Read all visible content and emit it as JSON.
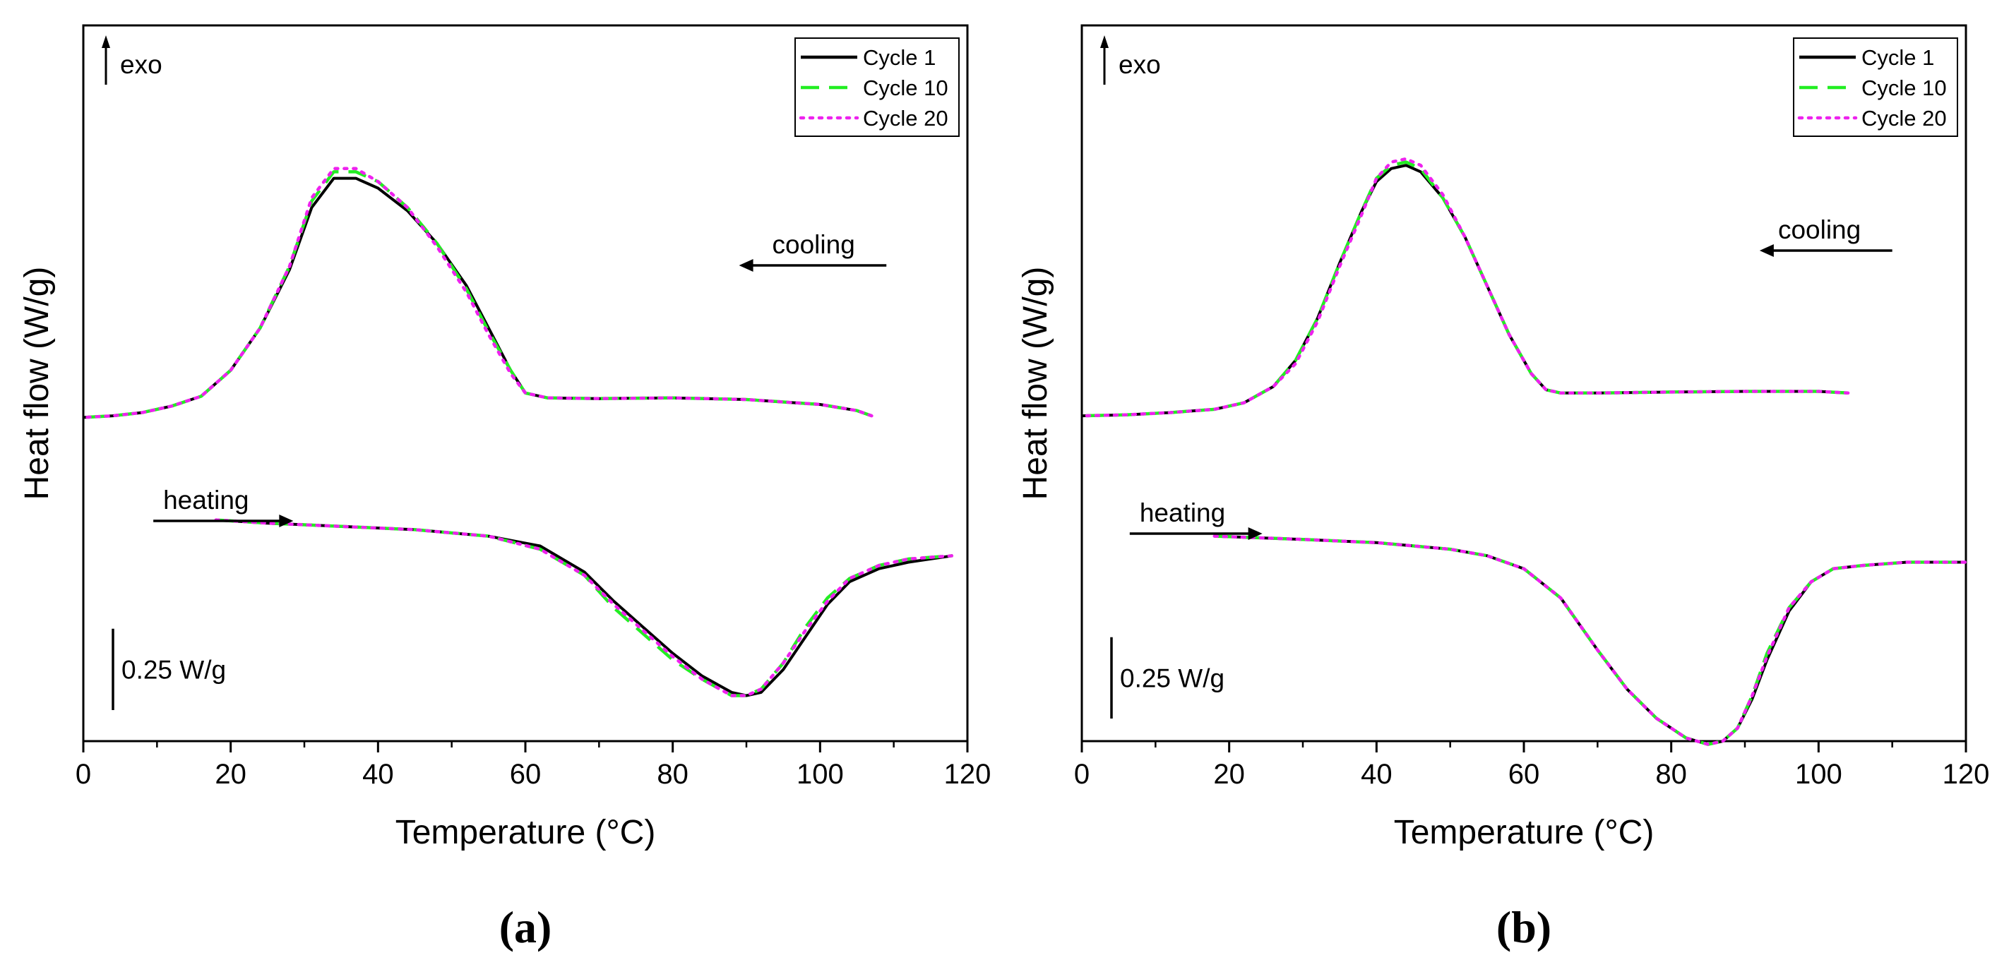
{
  "chart_data": [
    {
      "type": "line",
      "panel_label": "(a)",
      "xlabel": "Temperature (°C)",
      "ylabel": "Heat flow (W/g)",
      "xlim": [
        0,
        120
      ],
      "ylim": [
        -1.0,
        1.2
      ],
      "x_ticks": [
        "0",
        "20",
        "40",
        "60",
        "80",
        "100",
        "120"
      ],
      "y_ticks_labeled": false,
      "legend_position": "top-right",
      "annotations": {
        "exo": "exo",
        "cooling": "cooling",
        "heating": "heating",
        "scale_bar": "0.25 W/g",
        "scale_bar_value": 0.25
      },
      "series": [
        {
          "name": "Cycle 1",
          "color": "#000000",
          "dash": "solid",
          "cooling": {
            "x": [
              107,
              105,
              100,
              90,
              80,
              70,
              63,
              60,
              58,
              55,
              52,
              48,
              44,
              40,
              37,
              34,
              31,
              28,
              24,
              20,
              16,
              12,
              8,
              4,
              0
            ],
            "y": [
              0.0,
              0.016,
              0.035,
              0.05,
              0.055,
              0.053,
              0.055,
              0.07,
              0.14,
              0.27,
              0.4,
              0.53,
              0.63,
              0.7,
              0.73,
              0.73,
              0.64,
              0.45,
              0.27,
              0.14,
              0.06,
              0.03,
              0.01,
              0.0,
              -0.005
            ]
          },
          "heating": {
            "x": [
              18,
              25,
              35,
              45,
              55,
              62,
              68,
              72,
              76,
              80,
              84,
              88,
              90,
              92,
              95,
              98,
              101,
              104,
              108,
              112,
              118
            ],
            "y": [
              -0.32,
              -0.33,
              -0.34,
              -0.35,
              -0.37,
              -0.4,
              -0.48,
              -0.57,
              -0.65,
              -0.73,
              -0.8,
              -0.85,
              -0.86,
              -0.85,
              -0.78,
              -0.68,
              -0.58,
              -0.51,
              -0.47,
              -0.45,
              -0.43
            ]
          }
        },
        {
          "name": "Cycle 10",
          "color": "#22ee22",
          "dash": "dashed",
          "cooling": {
            "x": [
              107,
              105,
              100,
              90,
              80,
              70,
              63,
              60,
              58,
              55,
              52,
              48,
              44,
              40,
              37,
              34,
              31,
              28,
              24,
              20,
              16,
              12,
              8,
              4,
              0
            ],
            "y": [
              0.0,
              0.016,
              0.035,
              0.05,
              0.055,
              0.053,
              0.055,
              0.07,
              0.14,
              0.26,
              0.39,
              0.53,
              0.64,
              0.72,
              0.75,
              0.75,
              0.66,
              0.46,
              0.27,
              0.14,
              0.06,
              0.03,
              0.01,
              0.0,
              -0.005
            ]
          },
          "heating": {
            "x": [
              18,
              25,
              35,
              45,
              55,
              62,
              68,
              72,
              76,
              80,
              84,
              88,
              90,
              92,
              95,
              98,
              101,
              104,
              108,
              112,
              118
            ],
            "y": [
              -0.32,
              -0.33,
              -0.34,
              -0.35,
              -0.37,
              -0.41,
              -0.49,
              -0.59,
              -0.67,
              -0.75,
              -0.81,
              -0.86,
              -0.86,
              -0.84,
              -0.76,
              -0.65,
              -0.56,
              -0.5,
              -0.46,
              -0.44,
              -0.43
            ]
          }
        },
        {
          "name": "Cycle 20",
          "color": "#ee22ee",
          "dash": "dotted",
          "cooling": {
            "x": [
              107,
              105,
              100,
              90,
              80,
              70,
              63,
              60,
              58,
              55,
              52,
              48,
              44,
              40,
              37,
              34,
              31,
              28,
              24,
              20,
              16,
              12,
              8,
              4,
              0
            ],
            "y": [
              0.0,
              0.016,
              0.035,
              0.05,
              0.055,
              0.053,
              0.055,
              0.07,
              0.13,
              0.25,
              0.38,
              0.52,
              0.64,
              0.72,
              0.76,
              0.76,
              0.67,
              0.46,
              0.27,
              0.14,
              0.06,
              0.03,
              0.01,
              0.0,
              -0.005
            ]
          },
          "heating": {
            "x": [
              18,
              25,
              35,
              45,
              55,
              62,
              68,
              72,
              76,
              80,
              84,
              88,
              90,
              92,
              95,
              98,
              101,
              104,
              108,
              112,
              118
            ],
            "y": [
              -0.32,
              -0.33,
              -0.34,
              -0.35,
              -0.37,
              -0.41,
              -0.49,
              -0.58,
              -0.66,
              -0.74,
              -0.81,
              -0.86,
              -0.86,
              -0.84,
              -0.76,
              -0.66,
              -0.57,
              -0.5,
              -0.46,
              -0.44,
              -0.43
            ]
          }
        }
      ]
    },
    {
      "type": "line",
      "panel_label": "(b)",
      "xlabel": "Temperature (°C)",
      "ylabel": "Heat flow (W/g)",
      "xlim": [
        0,
        120
      ],
      "ylim": [
        -1.0,
        1.2
      ],
      "x_ticks": [
        "0",
        "20",
        "40",
        "60",
        "80",
        "100",
        "120"
      ],
      "y_ticks_labeled": false,
      "legend_position": "top-right",
      "annotations": {
        "exo": "exo",
        "cooling": "cooling",
        "heating": "heating",
        "scale_bar": "0.25 W/g",
        "scale_bar_value": 0.25
      },
      "series": [
        {
          "name": "Cycle 1",
          "color": "#000000",
          "dash": "solid",
          "cooling": {
            "x": [
              104,
              100,
              90,
              80,
              70,
              65,
              63,
              61,
              58,
              55,
              52,
              49,
              46,
              44,
              42,
              40,
              38,
              35,
              32,
              29,
              26,
              22,
              18,
              12,
              6,
              0
            ],
            "y": [
              0.07,
              0.075,
              0.075,
              0.073,
              0.07,
              0.07,
              0.08,
              0.13,
              0.25,
              0.4,
              0.55,
              0.67,
              0.75,
              0.77,
              0.76,
              0.72,
              0.63,
              0.47,
              0.3,
              0.17,
              0.09,
              0.04,
              0.02,
              0.01,
              0.003,
              0.0
            ]
          },
          "heating": {
            "x": [
              18,
              30,
              40,
              50,
              55,
              60,
              65,
              70,
              74,
              78,
              82,
              85,
              87,
              89,
              91,
              93,
              96,
              99,
              102,
              106,
              112,
              120
            ],
            "y": [
              -0.37,
              -0.38,
              -0.39,
              -0.41,
              -0.43,
              -0.47,
              -0.56,
              -0.72,
              -0.84,
              -0.93,
              -0.99,
              -1.01,
              -1.0,
              -0.96,
              -0.87,
              -0.75,
              -0.6,
              -0.51,
              -0.47,
              -0.46,
              -0.45,
              -0.45
            ]
          }
        },
        {
          "name": "Cycle 10",
          "color": "#22ee22",
          "dash": "dashed",
          "cooling": {
            "x": [
              104,
              100,
              90,
              80,
              70,
              65,
              63,
              61,
              58,
              55,
              52,
              49,
              46,
              44,
              42,
              40,
              38,
              35,
              32,
              29,
              26,
              22,
              18,
              12,
              6,
              0
            ],
            "y": [
              0.07,
              0.075,
              0.075,
              0.073,
              0.07,
              0.07,
              0.08,
              0.13,
              0.25,
              0.4,
              0.55,
              0.67,
              0.76,
              0.78,
              0.77,
              0.73,
              0.63,
              0.47,
              0.3,
              0.17,
              0.09,
              0.04,
              0.02,
              0.01,
              0.003,
              0.0
            ]
          },
          "heating": {
            "x": [
              18,
              30,
              40,
              50,
              55,
              60,
              65,
              70,
              74,
              78,
              82,
              85,
              87,
              89,
              91,
              93,
              96,
              99,
              102,
              106,
              112,
              120
            ],
            "y": [
              -0.37,
              -0.38,
              -0.39,
              -0.41,
              -0.43,
              -0.47,
              -0.56,
              -0.72,
              -0.84,
              -0.93,
              -0.99,
              -1.01,
              -1.0,
              -0.96,
              -0.86,
              -0.73,
              -0.59,
              -0.51,
              -0.47,
              -0.46,
              -0.45,
              -0.45
            ]
          }
        },
        {
          "name": "Cycle 20",
          "color": "#ee22ee",
          "dash": "dotted",
          "cooling": {
            "x": [
              104,
              100,
              90,
              80,
              70,
              65,
              63,
              61,
              58,
              55,
              52,
              49,
              46,
              44,
              42,
              40,
              38,
              35,
              32,
              29,
              26,
              22,
              18,
              12,
              6,
              0
            ],
            "y": [
              0.07,
              0.075,
              0.075,
              0.073,
              0.07,
              0.07,
              0.08,
              0.13,
              0.25,
              0.4,
              0.55,
              0.68,
              0.77,
              0.79,
              0.78,
              0.73,
              0.62,
              0.46,
              0.29,
              0.16,
              0.09,
              0.04,
              0.02,
              0.01,
              0.003,
              0.0
            ]
          },
          "heating": {
            "x": [
              18,
              30,
              40,
              50,
              55,
              60,
              65,
              70,
              74,
              78,
              82,
              85,
              87,
              89,
              91,
              93,
              96,
              99,
              102,
              106,
              112,
              120
            ],
            "y": [
              -0.37,
              -0.38,
              -0.39,
              -0.41,
              -0.43,
              -0.47,
              -0.56,
              -0.72,
              -0.84,
              -0.93,
              -0.99,
              -1.01,
              -1.0,
              -0.96,
              -0.86,
              -0.74,
              -0.59,
              -0.51,
              -0.47,
              -0.46,
              -0.45,
              -0.45
            ]
          }
        }
      ]
    }
  ]
}
